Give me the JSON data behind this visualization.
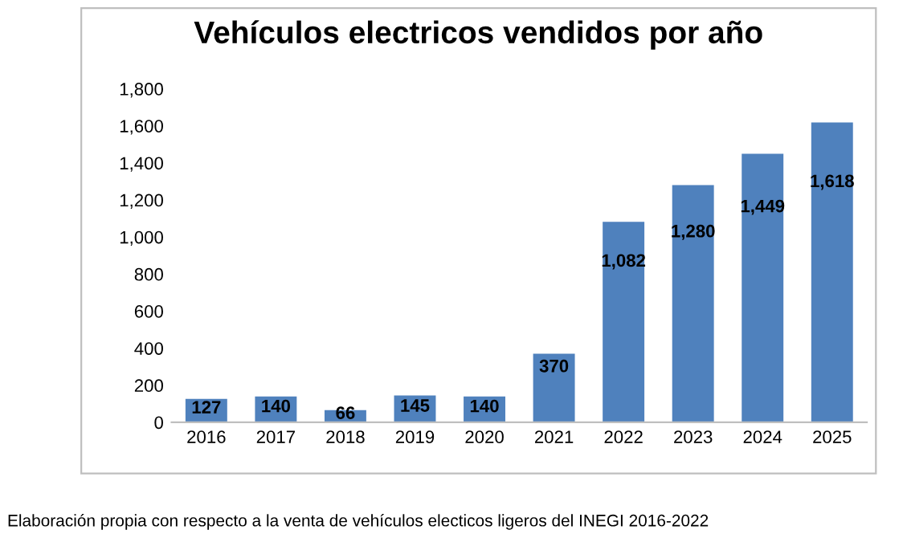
{
  "chart_data": {
    "type": "bar",
    "title": "Vehículos electricos vendidos por año",
    "categories": [
      "2016",
      "2017",
      "2018",
      "2019",
      "2020",
      "2021",
      "2022",
      "2023",
      "2024",
      "2025"
    ],
    "values": [
      127,
      140,
      66,
      145,
      140,
      370,
      1082,
      1280,
      1449,
      1618
    ],
    "value_labels": [
      "127",
      "140",
      "66",
      "145",
      "140",
      "370",
      "1,082",
      "1,280",
      "1,449",
      "1,618"
    ],
    "color": "#4f81bd",
    "ylim": [
      0,
      1800
    ],
    "yticks": [
      0,
      200,
      400,
      600,
      800,
      {
        "value": 1000,
        "label": "1,000"
      },
      {
        "value": 1200,
        "label": "1,200"
      },
      {
        "value": 1400,
        "label": "1,400"
      },
      {
        "value": 1600,
        "label": "1,600"
      },
      {
        "value": 1800,
        "label": "1,800"
      }
    ],
    "grid": false,
    "annotations": [
      "Elaboración propia con respecto a la venta de vehículos electicos ligeros del INEGI 2016-2022"
    ]
  }
}
